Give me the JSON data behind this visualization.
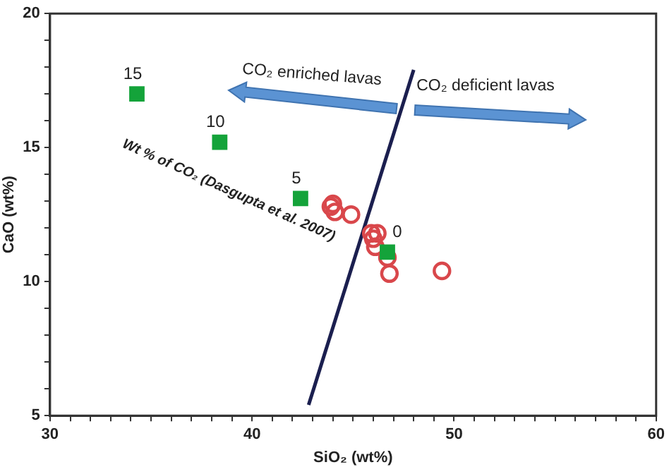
{
  "chart_data": {
    "type": "scatter",
    "xlabel": "SiO₂ (wt%)",
    "ylabel": "CaO (wt%)",
    "xlim": [
      30,
      60
    ],
    "ylim": [
      5,
      20
    ],
    "xticks": [
      30,
      {
        "value": 31,
        "label": null
      },
      {
        "value": 32,
        "label": null
      },
      {
        "value": 33,
        "label": null
      },
      {
        "value": 34,
        "label": null
      },
      {
        "value": 35,
        "label": null
      },
      {
        "value": 36,
        "label": null
      },
      {
        "value": 37,
        "label": null
      },
      {
        "value": 38,
        "label": null
      },
      {
        "value": 39,
        "label": null
      },
      40,
      {
        "value": 41,
        "label": null
      },
      {
        "value": 42,
        "label": null
      },
      {
        "value": 43,
        "label": null
      },
      {
        "value": 44,
        "label": null
      },
      {
        "value": 45,
        "label": null
      },
      {
        "value": 46,
        "label": null
      },
      {
        "value": 47,
        "label": null
      },
      {
        "value": 48,
        "label": null
      },
      {
        "value": 49,
        "label": null
      },
      50,
      {
        "value": 51,
        "label": null
      },
      {
        "value": 52,
        "label": null
      },
      {
        "value": 53,
        "label": null
      },
      {
        "value": 54,
        "label": null
      },
      {
        "value": 55,
        "label": null
      },
      {
        "value": 56,
        "label": null
      },
      {
        "value": 57,
        "label": null
      },
      {
        "value": 58,
        "label": null
      },
      {
        "value": 59,
        "label": null
      },
      60
    ],
    "yticks": [
      5,
      {
        "value": 6,
        "label": null
      },
      {
        "value": 7,
        "label": null
      },
      {
        "value": 8,
        "label": null
      },
      {
        "value": 9,
        "label": null
      },
      10,
      {
        "value": 11,
        "label": null
      },
      {
        "value": 12,
        "label": null
      },
      {
        "value": 13,
        "label": null
      },
      {
        "value": 14,
        "label": null
      },
      15,
      {
        "value": 16,
        "label": null
      },
      {
        "value": 17,
        "label": null
      },
      {
        "value": 18,
        "label": null
      },
      {
        "value": 19,
        "label": null
      },
      20
    ],
    "grid": false,
    "legend": false,
    "series": [
      {
        "type": "scatter",
        "marker": "square",
        "color": "#14a33a",
        "x": [
          34.3,
          38.4,
          42.4,
          46.7
        ],
        "values": [
          17.0,
          15.2,
          13.1,
          11.1
        ]
      },
      {
        "type": "scatter",
        "marker": "circle",
        "color": "#d9474b",
        "x": [
          44.0,
          43.9,
          44.1,
          44.9,
          45.9,
          46.2,
          46.0,
          46.1,
          46.7,
          46.8,
          49.4
        ],
        "values": [
          12.9,
          12.8,
          12.6,
          12.5,
          11.8,
          11.8,
          11.6,
          11.3,
          10.9,
          10.3,
          10.4
        ]
      },
      {
        "type": "line",
        "marker": "none",
        "color": "#1b1f4f",
        "x": [
          42.8,
          48.0
        ],
        "values": [
          5.4,
          17.9
        ]
      }
    ],
    "annotations": [
      "CO₂ enriched lavas",
      "CO₂ deficient lavas",
      "Wt % of CO₂ (Dasgupta et al. 2007)",
      {
        "text": "15",
        "x": 34.3,
        "y": 17.0
      },
      {
        "text": "10",
        "x": 38.4,
        "y": 15.2
      },
      {
        "text": "5",
        "x": 42.4,
        "y": 13.1
      },
      {
        "text": "0",
        "x": 46.7,
        "y": 11.1
      }
    ]
  }
}
